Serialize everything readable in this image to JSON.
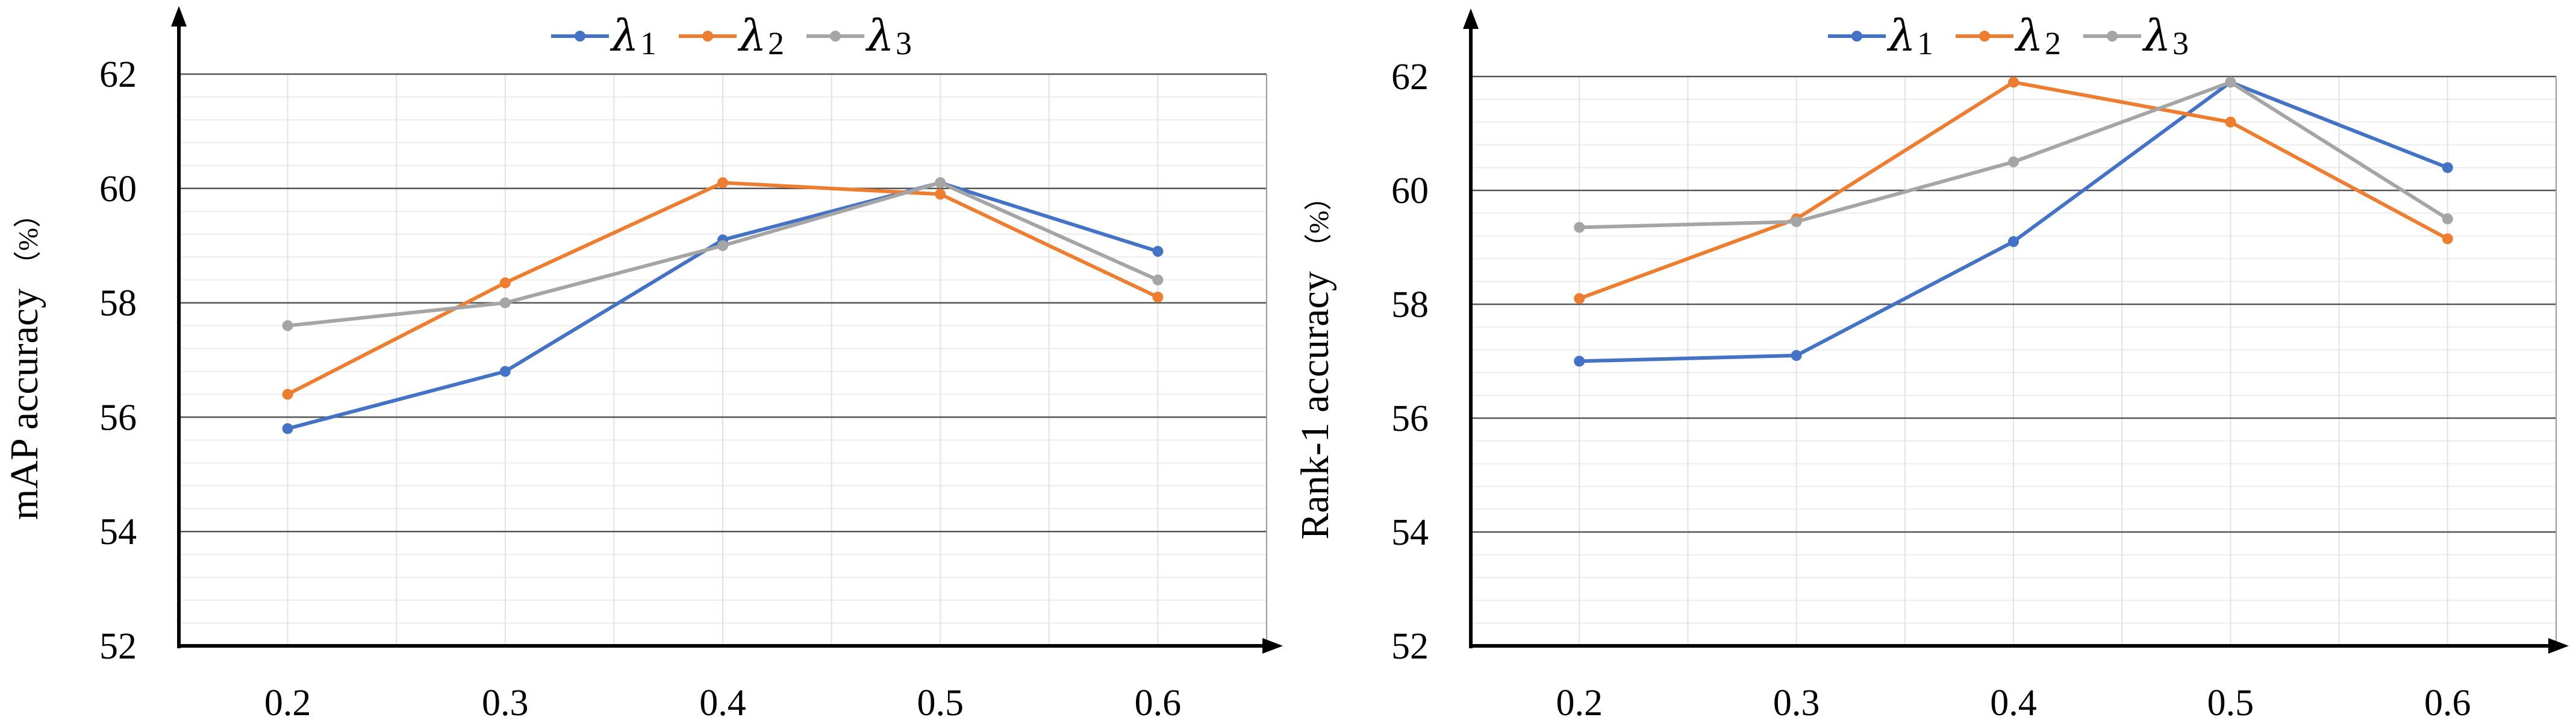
{
  "chart_data": [
    {
      "type": "line",
      "ylabel": "mAP accuracy",
      "yunit": "（%）",
      "x": [
        "0.2",
        "0.3",
        "0.4",
        "0.5",
        "0.6"
      ],
      "ylim": [
        52,
        62
      ],
      "yticks": [
        "52",
        "54",
        "56",
        "58",
        "60",
        "62"
      ],
      "grid": true,
      "legend_position": "top-center",
      "series": [
        {
          "name": "λ",
          "sub": "1",
          "color": "#4472C4",
          "values": [
            55.8,
            56.8,
            59.1,
            60.1,
            58.9
          ]
        },
        {
          "name": "λ",
          "sub": "2",
          "color": "#ED7D31",
          "values": [
            56.4,
            58.35,
            60.1,
            59.9,
            58.1
          ]
        },
        {
          "name": "λ",
          "sub": "3",
          "color": "#A5A5A5",
          "values": [
            57.6,
            58.0,
            59.0,
            60.1,
            58.4
          ]
        }
      ]
    },
    {
      "type": "line",
      "ylabel": "Rank-1 accuracy",
      "yunit": "（%）",
      "x": [
        "0.2",
        "0.3",
        "0.4",
        "0.5",
        "0.6"
      ],
      "ylim": [
        52,
        62
      ],
      "yticks": [
        "52",
        "54",
        "56",
        "58",
        "60",
        "62"
      ],
      "grid": true,
      "legend_position": "top-center",
      "series": [
        {
          "name": "λ",
          "sub": "1",
          "color": "#4472C4",
          "values": [
            57.0,
            57.1,
            59.1,
            61.9,
            60.4
          ]
        },
        {
          "name": "λ",
          "sub": "2",
          "color": "#ED7D31",
          "values": [
            58.1,
            59.5,
            61.9,
            61.2,
            59.15
          ]
        },
        {
          "name": "λ",
          "sub": "3",
          "color": "#A5A5A5",
          "values": [
            59.35,
            59.45,
            60.5,
            61.9,
            59.5
          ]
        }
      ]
    }
  ]
}
